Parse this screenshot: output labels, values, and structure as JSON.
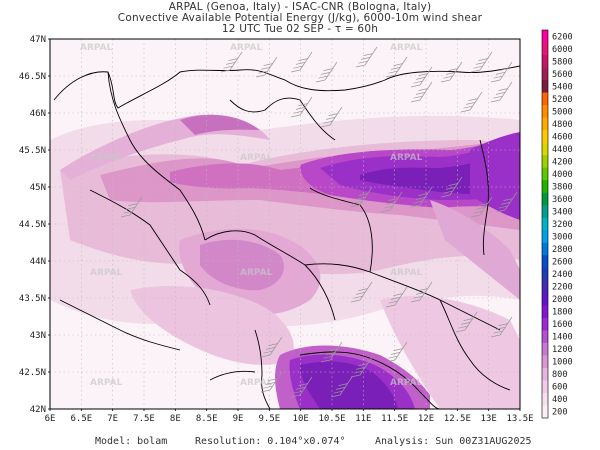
{
  "header": {
    "line1": "ARPAL (Genoa, Italy)  -  ISAC-CNR (Bologna, Italy)",
    "line2": "Convective Available Potential Energy (J/kg), 6000-10m wind shear",
    "line3": "12 UTC Tue 02 SEP  -  τ = 60h"
  },
  "axes": {
    "lat_labels": [
      "47N",
      "46.5N",
      "46N",
      "45.5N",
      "45N",
      "44.5N",
      "44N",
      "43.5N",
      "43N",
      "42.5N",
      "42N"
    ],
    "lon_labels": [
      "6E",
      "6.5E",
      "7E",
      "7.5E",
      "8E",
      "8.5E",
      "9E",
      "9.5E",
      "10E",
      "10.5E",
      "11E",
      "11.5E",
      "12E",
      "12.5E",
      "13E",
      "13.5E"
    ]
  },
  "colorbar": {
    "labels": [
      "6200",
      "6000",
      "5800",
      "5600",
      "5400",
      "5200",
      "5000",
      "4800",
      "4600",
      "4400",
      "4200",
      "4000",
      "3800",
      "3600",
      "3400",
      "3200",
      "3000",
      "2800",
      "2600",
      "2400",
      "2200",
      "2000",
      "1800",
      "1600",
      "1400",
      "1200",
      "1000",
      "800",
      "600",
      "400",
      "200"
    ],
    "colors": [
      "#ff00a0",
      "#e8147a",
      "#c81464",
      "#a01e50",
      "#7a1e3c",
      "#ff6400",
      "#ff8c00",
      "#ffaa00",
      "#ffc800",
      "#d8d800",
      "#a0d000",
      "#60c800",
      "#20b400",
      "#009a3c",
      "#00a08c",
      "#00b4c8",
      "#00a0e6",
      "#0078dc",
      "#0050c8",
      "#1e3cb4",
      "#4628b4",
      "#6414c8",
      "#8214d2",
      "#a028d2",
      "#b450d2",
      "#c878d2",
      "#d896d2",
      "#e6b4dc",
      "#f0cce6",
      "#f6e0ee",
      "#fbf0f6"
    ]
  },
  "watermark": "ARPAL",
  "footer": {
    "model": "Model: bolam",
    "resolution": "Resolution: 0.104°x0.074°",
    "analysis": "Analysis: Sun 00Z31AUG2025"
  },
  "styles": {
    "border_color": "#000000",
    "grid_color": "#bbbbbb"
  }
}
